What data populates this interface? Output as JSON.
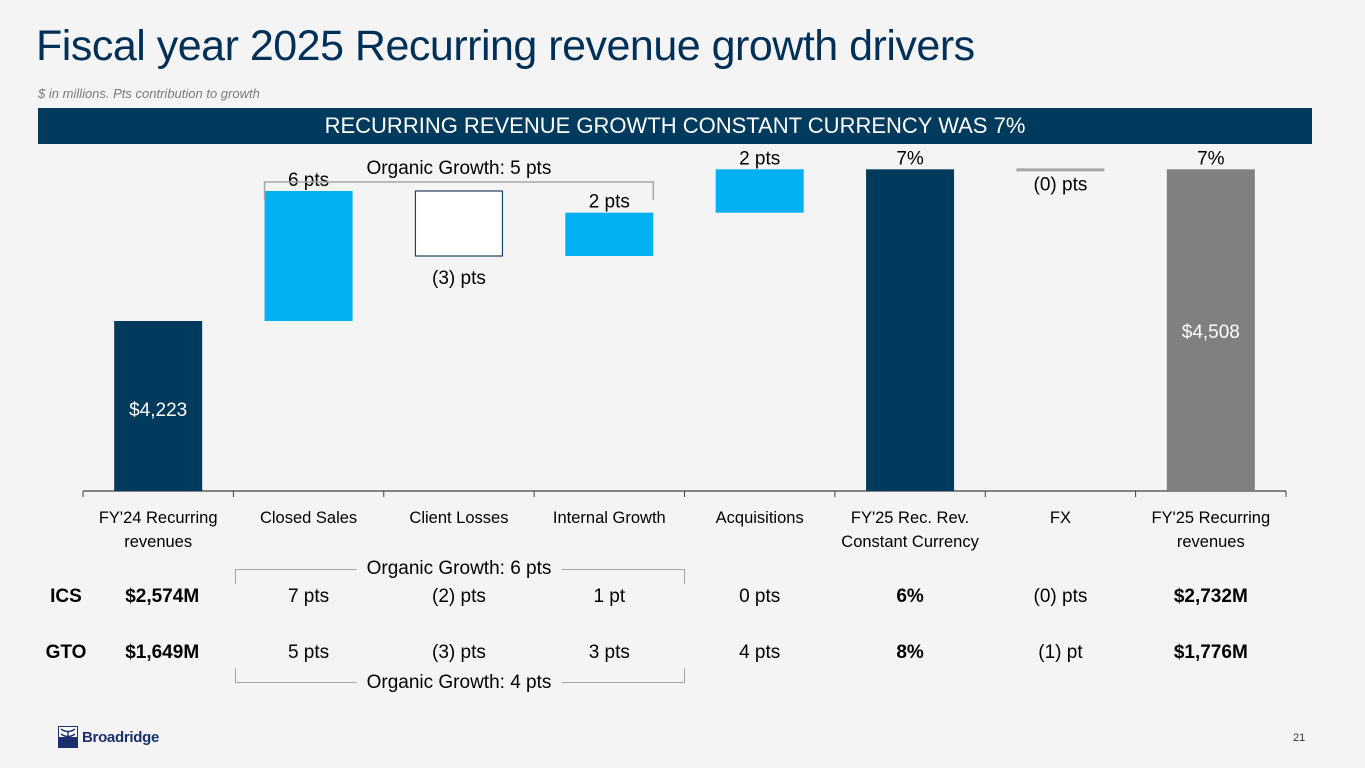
{
  "title": "Fiscal year 2025 Recurring revenue growth drivers",
  "subtitle": "$ in millions. Pts contribution to growth",
  "banner": "RECURRING REVENUE GROWTH CONSTANT CURRENCY WAS 7%",
  "colors": {
    "navy": "#003a5d",
    "light_blue": "#00b0f0",
    "gray": "#808080",
    "fx_gray": "#a6a6a6",
    "title": "#003057"
  },
  "chart_data": {
    "type": "waterfall",
    "title": "Fiscal year 2025 Recurring revenue growth drivers",
    "categories": [
      "FY'24 Recurring revenues",
      "Closed Sales",
      "Client Losses",
      "Internal Growth",
      "Acquisitions",
      "FY'25 Rec. Rev. Constant Currency",
      "FX",
      "FY'25 Recurring revenues"
    ],
    "category_lines": [
      [
        "FY'24 Recurring",
        "revenues"
      ],
      [
        "Closed Sales"
      ],
      [
        "Client Losses"
      ],
      [
        "Internal Growth"
      ],
      [
        "Acquisitions"
      ],
      [
        "FY'25 Rec. Rev.",
        "Constant Currency"
      ],
      [
        "FX"
      ],
      [
        "FY'25 Recurring",
        "revenues"
      ]
    ],
    "series": [
      {
        "name": "FY'24 Recurring revenues",
        "kind": "total",
        "value_musd": 4223,
        "label": "$4,223",
        "color": "#003a5d"
      },
      {
        "name": "Closed Sales",
        "kind": "delta",
        "value_pts": 6,
        "label": "6 pts",
        "color": "#00b0f0"
      },
      {
        "name": "Client Losses",
        "kind": "delta",
        "value_pts": -3,
        "label": "(3) pts",
        "color": "outline"
      },
      {
        "name": "Internal Growth",
        "kind": "delta",
        "value_pts": 2,
        "label": "2 pts",
        "color": "#00b0f0"
      },
      {
        "name": "Acquisitions",
        "kind": "delta",
        "value_pts": 2,
        "label": "2 pts",
        "color": "#00b0f0"
      },
      {
        "name": "FY'25 Rec. Rev. Constant Currency",
        "kind": "total",
        "value_pct": 7,
        "label": "7%",
        "color": "#003a5d"
      },
      {
        "name": "FX",
        "kind": "delta",
        "value_pts": 0,
        "label": "(0) pts",
        "color": "#a6a6a6"
      },
      {
        "name": "FY'25 Recurring revenues",
        "kind": "total",
        "value_musd": 4508,
        "value_pct": 7,
        "label": "7%",
        "inner_label": "$4,508",
        "color": "#808080"
      }
    ],
    "annotation": "Organic Growth: 5 pts",
    "xlabel": "",
    "ylabel": ""
  },
  "segments_table": {
    "rows": [
      {
        "segment": "ICS",
        "base": "$2,574M",
        "values": [
          "7 pts",
          "(2) pts",
          "1 pt",
          "0 pts",
          "6%",
          "(0) pts",
          "$2,732M"
        ],
        "organic": "Organic Growth: 6 pts"
      },
      {
        "segment": "GTO",
        "base": "$1,649M",
        "values": [
          "5 pts",
          "(3) pts",
          "3 pts",
          "4 pts",
          "8%",
          "(1) pt",
          "$1,776M"
        ],
        "organic": "Organic Growth: 4 pts"
      }
    ]
  },
  "footer": {
    "logo_text": "Broadridge",
    "page_number": "21"
  }
}
